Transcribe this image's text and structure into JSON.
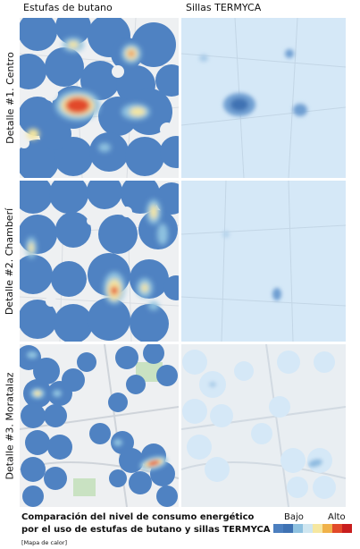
{
  "columns": [
    "Estufas de butano",
    "Sillas TERMYCA"
  ],
  "rows": [
    "Detalle #1. Centro",
    "Detalle #2. Chamberí",
    "Detalle #3. Moratalaz"
  ],
  "caption": {
    "main": "Comparación del nivel de consumo energético por el uso de estufas de butano y sillas TERMYCA",
    "note": "[Mapa de calor]"
  },
  "legend": {
    "low": "Bajo",
    "high": "Alto",
    "colors": [
      "#4c7fbf",
      "#3f72b3",
      "#8fc2e0",
      "#cfe6f0",
      "#f6e7a0",
      "#f0b24a",
      "#e24a2a",
      "#c81e1e"
    ]
  },
  "colors": {
    "map_bg": "#eef0f2",
    "butano_fill": "#4f82c2",
    "termyca_fill": "#d5e8f7"
  }
}
